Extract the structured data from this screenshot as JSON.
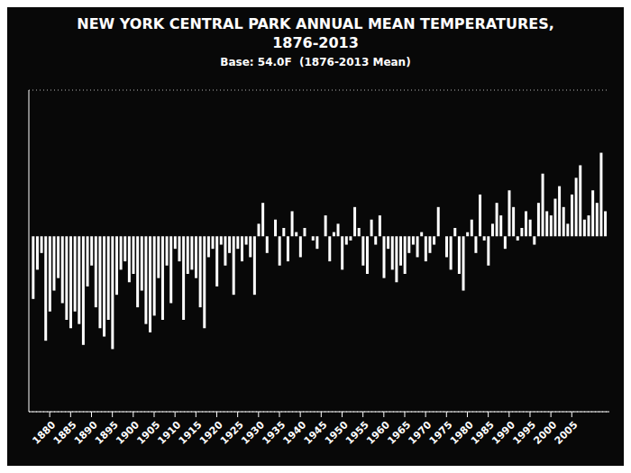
{
  "chart_data": {
    "type": "bar",
    "title": "NEW YORK CENTRAL PARK ANNUAL MEAN TEMPERATURES,\n1876-2013",
    "subtitle": "Base: 54.0F  (1876-2013 Mean)",
    "x": [
      1876,
      1877,
      1878,
      1879,
      1880,
      1881,
      1882,
      1883,
      1884,
      1885,
      1886,
      1887,
      1888,
      1889,
      1890,
      1891,
      1892,
      1893,
      1894,
      1895,
      1896,
      1897,
      1898,
      1899,
      1900,
      1901,
      1902,
      1903,
      1904,
      1905,
      1906,
      1907,
      1908,
      1909,
      1910,
      1911,
      1912,
      1913,
      1914,
      1915,
      1916,
      1917,
      1918,
      1919,
      1920,
      1921,
      1922,
      1923,
      1924,
      1925,
      1926,
      1927,
      1928,
      1929,
      1930,
      1931,
      1932,
      1933,
      1934,
      1935,
      1936,
      1937,
      1938,
      1939,
      1940,
      1941,
      1942,
      1943,
      1944,
      1945,
      1946,
      1947,
      1948,
      1949,
      1950,
      1951,
      1952,
      1953,
      1954,
      1955,
      1956,
      1957,
      1958,
      1959,
      1960,
      1961,
      1962,
      1963,
      1964,
      1965,
      1966,
      1967,
      1968,
      1969,
      1970,
      1971,
      1972,
      1973,
      1974,
      1975,
      1976,
      1977,
      1978,
      1979,
      1980,
      1981,
      1982,
      1983,
      1984,
      1985,
      1986,
      1987,
      1988,
      1989,
      1990,
      1991,
      1992,
      1993,
      1994,
      1995,
      1996,
      1997,
      1998,
      1999,
      2000,
      2001,
      2002,
      2003,
      2004,
      2005,
      2006,
      2007,
      2008,
      2009,
      2010,
      2011,
      2012,
      2013
    ],
    "values": [
      -1.5,
      -0.8,
      -0.4,
      -2.5,
      -1.8,
      -1.3,
      -1.0,
      -1.6,
      -2.0,
      -2.2,
      -1.8,
      -2.1,
      -2.6,
      -1.2,
      -0.7,
      -1.7,
      -2.2,
      -2.4,
      -2.0,
      -2.7,
      -1.4,
      -0.8,
      -0.6,
      -1.1,
      -0.9,
      -1.7,
      -1.3,
      -2.1,
      -2.3,
      -1.9,
      -1.0,
      -2.0,
      -0.7,
      -1.6,
      -0.3,
      -0.6,
      -2.0,
      -0.9,
      -0.8,
      -1.0,
      -1.7,
      -2.2,
      -0.5,
      -0.3,
      -1.2,
      -0.2,
      -0.7,
      -0.4,
      -1.4,
      -0.3,
      -0.6,
      -0.2,
      -0.5,
      -1.4,
      0.3,
      0.8,
      -0.4,
      0.0,
      0.4,
      -0.7,
      0.2,
      -0.6,
      0.6,
      0.1,
      -0.5,
      0.2,
      0.0,
      -0.1,
      -0.3,
      0.0,
      0.5,
      -0.6,
      0.1,
      0.3,
      -0.8,
      -0.2,
      -0.1,
      0.7,
      0.2,
      -0.7,
      -0.9,
      0.4,
      -0.2,
      0.5,
      -1.0,
      -0.3,
      -0.8,
      -1.1,
      -0.7,
      -0.9,
      -0.4,
      -0.2,
      -0.5,
      0.1,
      -0.6,
      -0.4,
      -0.2,
      0.7,
      0.0,
      -0.5,
      -0.8,
      0.2,
      -0.9,
      -1.3,
      0.1,
      0.4,
      -0.4,
      1.0,
      -0.1,
      -0.7,
      0.3,
      0.8,
      0.5,
      -0.3,
      1.1,
      0.7,
      -0.1,
      0.2,
      0.6,
      0.4,
      -0.2,
      0.8,
      1.5,
      0.6,
      0.5,
      0.9,
      1.2,
      0.7,
      0.3,
      1.0,
      1.4,
      1.7,
      0.4,
      0.5,
      1.1,
      0.8,
      2.0,
      0.6
    ],
    "xlim": [
      1875,
      2014
    ],
    "xticks": [
      1880,
      1885,
      1890,
      1895,
      1900,
      1905,
      1910,
      1915,
      1920,
      1925,
      1930,
      1935,
      1940,
      1945,
      1950,
      1955,
      1960,
      1965,
      1970,
      1975,
      1980,
      1985,
      1990,
      1995,
      2000,
      2005
    ],
    "ylim": [
      -4.2,
      3.5
    ],
    "yticks": [
      -3.0,
      -2.0,
      -1.0,
      0.0,
      1.0,
      2.0,
      3.0
    ],
    "grid": true,
    "tick_labels": "x",
    "color": "#ffffff"
  }
}
